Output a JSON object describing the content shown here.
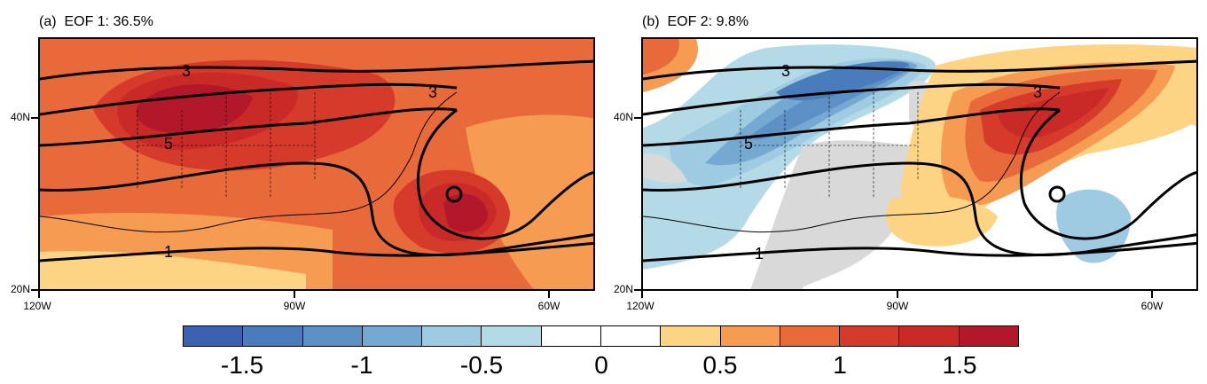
{
  "panels": [
    {
      "id": "a",
      "title": "(a)  EOF 1: 36.5%"
    },
    {
      "id": "b",
      "title": "(b)  EOF 2: 9.8%"
    }
  ],
  "axes": {
    "lat_labels": [
      "40N",
      "20N"
    ],
    "lon_labels": [
      "120W",
      "90W",
      "60W"
    ]
  },
  "contour_labels": {
    "a": [
      "5",
      "3",
      "3",
      "1"
    ],
    "b": [
      "5",
      "3",
      "3",
      "1"
    ]
  },
  "colorbar": {
    "colors": [
      "#3a62b0",
      "#4a7bbb",
      "#5d91c5",
      "#75a9d2",
      "#9ecbe1",
      "#b4dae8",
      "#ffffff",
      "#ffffff",
      "#fdd384",
      "#f59b52",
      "#e86a3a",
      "#d63a2a",
      "#c92a28",
      "#b3172a"
    ],
    "labels": [
      "-1.5",
      "-1",
      "-0.5",
      "0",
      "0.5",
      "1",
      "1.5"
    ]
  }
}
